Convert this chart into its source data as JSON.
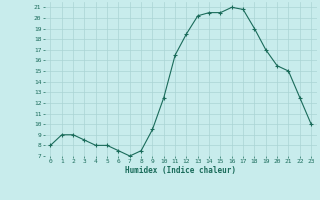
{
  "x": [
    0,
    1,
    2,
    3,
    4,
    5,
    6,
    7,
    8,
    9,
    10,
    11,
    12,
    13,
    14,
    15,
    16,
    17,
    18,
    19,
    20,
    21,
    22,
    23
  ],
  "y": [
    8,
    9,
    9,
    8.5,
    8,
    8,
    7.5,
    7,
    7.5,
    9.5,
    12.5,
    16.5,
    18.5,
    20.2,
    20.5,
    20.5,
    21,
    20.8,
    19,
    17,
    15.5,
    15,
    12.5,
    10
  ],
  "line_color": "#1a6b5a",
  "marker_color": "#1a6b5a",
  "bg_color": "#c8ecec",
  "grid_color": "#aad4d4",
  "xlabel": "Humidex (Indice chaleur)",
  "ylim": [
    7,
    21.5
  ],
  "xlim": [
    -0.5,
    23.5
  ],
  "yticks": [
    7,
    8,
    9,
    10,
    11,
    12,
    13,
    14,
    15,
    16,
    17,
    18,
    19,
    20,
    21
  ],
  "xticks": [
    0,
    1,
    2,
    3,
    4,
    5,
    6,
    7,
    8,
    9,
    10,
    11,
    12,
    13,
    14,
    15,
    16,
    17,
    18,
    19,
    20,
    21,
    22,
    23
  ]
}
